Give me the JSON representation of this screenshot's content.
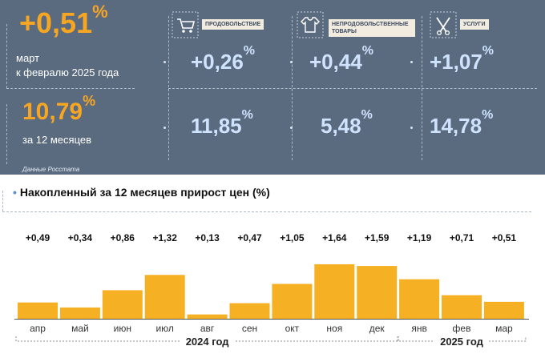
{
  "header": {
    "main_value": "+0,51",
    "main_unit": "%",
    "main_label_line1": "март",
    "main_label_line2": "к февралю 2025 года",
    "annual_value": "10,79",
    "annual_unit": "%",
    "annual_label": "за 12 месяцев",
    "source": "Данные Росстата"
  },
  "categories": [
    {
      "label": "ПРОДОВОЛЬСТВИЕ",
      "icon": "shopping-cart-icon",
      "monthly": "+0,26",
      "annual": "11,85",
      "unit": "%"
    },
    {
      "label": "НЕПРОДОВОЛЬСТВЕННЫЕ ТОВАРЫ",
      "icon": "clothing-icon",
      "monthly": "+0,44",
      "annual": "5,48",
      "unit": "%"
    },
    {
      "label": "УСЛУГИ",
      "icon": "tools-icon",
      "monthly": "+1,07",
      "annual": "14,78",
      "unit": "%"
    }
  ],
  "chart_data": {
    "type": "bar",
    "title": "Накопленный за 12 месяцев прирост цен (%)",
    "categories": [
      "апр",
      "май",
      "июн",
      "июл",
      "авг",
      "сен",
      "окт",
      "ноя",
      "дек",
      "янв",
      "фев",
      "мар"
    ],
    "values": [
      0.49,
      0.34,
      0.86,
      1.32,
      0.13,
      0.47,
      1.05,
      1.64,
      1.59,
      1.19,
      0.71,
      0.51
    ],
    "value_labels": [
      "+0,49",
      "+0,34",
      "+0,86",
      "+1,32",
      "+0,13",
      "+0,47",
      "+1,05",
      "+1,64",
      "+1,59",
      "+1,19",
      "+0,71",
      "+0,51"
    ],
    "year_groups": [
      {
        "label": "2024 год",
        "from": 0,
        "to": 8
      },
      {
        "label": "2025 год",
        "from": 9,
        "to": 11
      }
    ],
    "bar_color": "#f6b024",
    "grid": false
  }
}
